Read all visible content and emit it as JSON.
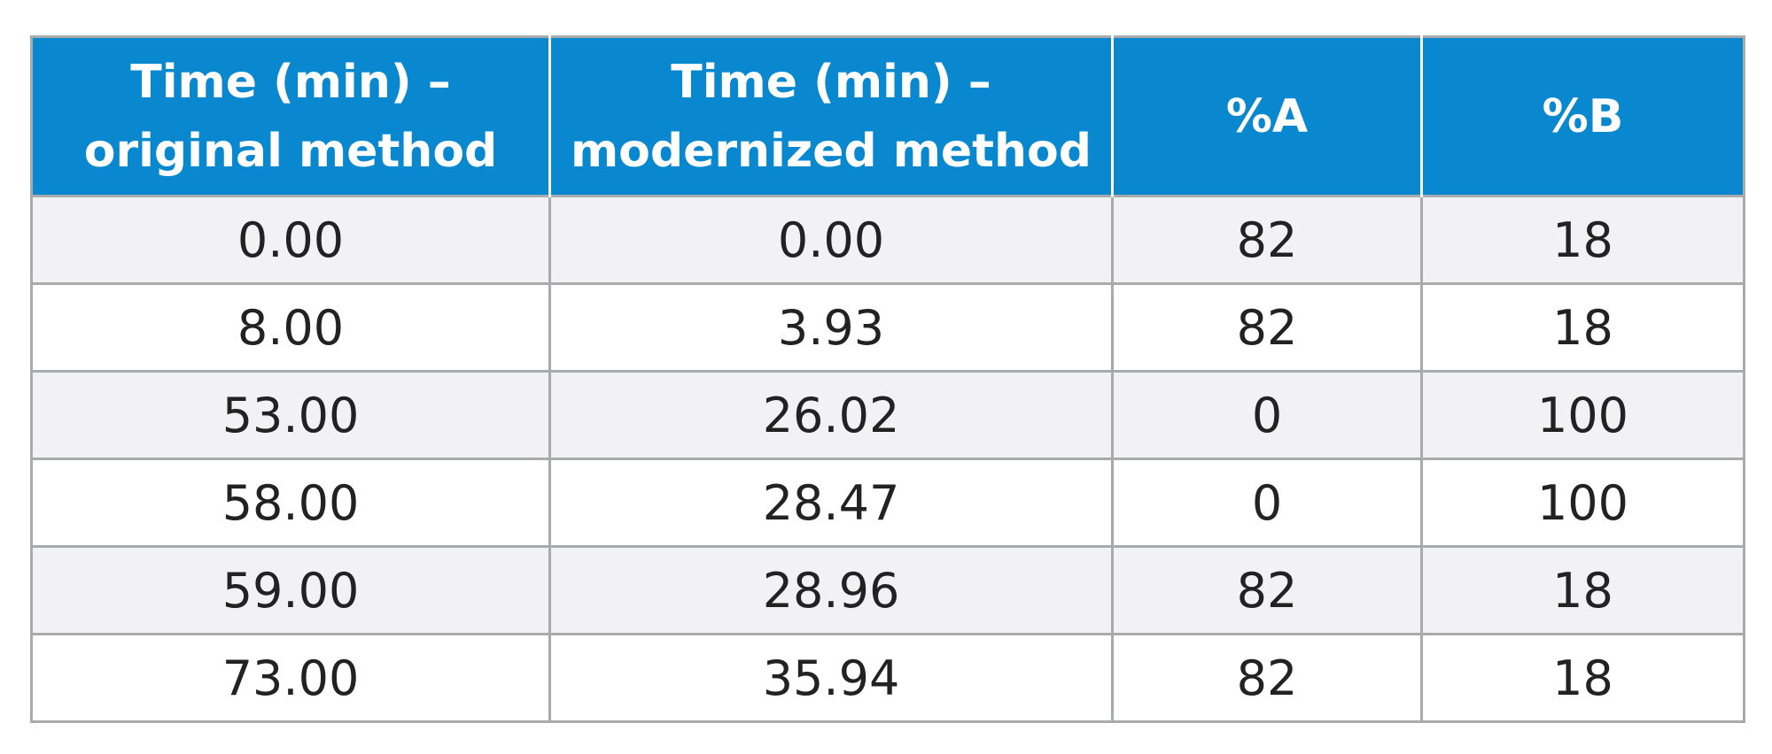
{
  "table": {
    "headers": [
      [
        "Time (min) –",
        "original method"
      ],
      [
        "Time (min)  –",
        "modernized method"
      ],
      [
        "%A"
      ],
      [
        "%B"
      ]
    ],
    "rows": [
      [
        "0.00",
        "0.00",
        "82",
        "18"
      ],
      [
        "8.00",
        "3.93",
        "82",
        "18"
      ],
      [
        "53.00",
        "26.02",
        "0",
        "100"
      ],
      [
        "58.00",
        "28.47",
        "0",
        "100"
      ],
      [
        "59.00",
        "28.96",
        "82",
        "18"
      ],
      [
        "73.00",
        "35.94",
        "82",
        "18"
      ]
    ]
  },
  "colors": {
    "header_background": "#0a88cf",
    "header_text": "#ffffff",
    "row_alt_background": "#f2f2f4",
    "border": "#a9aaac"
  }
}
